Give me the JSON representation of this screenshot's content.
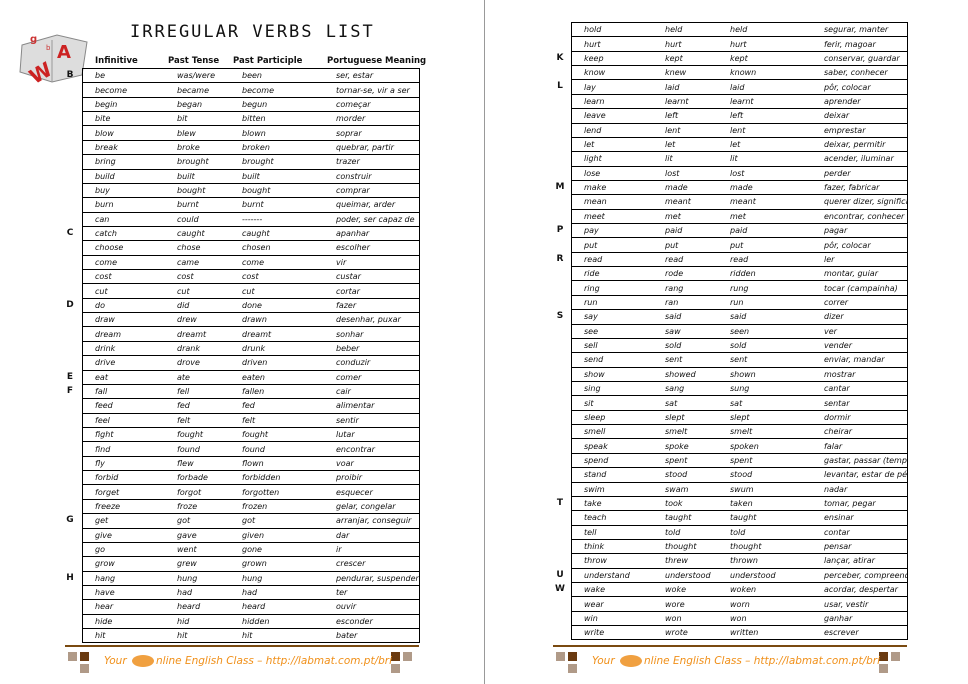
{
  "title": "Irregular Verbs List",
  "logo_letters": "g b A W",
  "headers": [
    "Infinitive",
    "Past Tense",
    "Past Participle",
    "Portuguese Meaning"
  ],
  "footer": {
    "text_before": "Your",
    "text_after": "nline English Class – http://labmat.com.pt/bri"
  },
  "colors": {
    "footer_text": "#f0901a",
    "footer_line": "#7a4a10"
  },
  "left_rows": [
    [
      "B",
      "be",
      "was/were",
      "been",
      "ser, estar"
    ],
    [
      "",
      "become",
      "became",
      "become",
      "tornar-se, vir a ser"
    ],
    [
      "",
      "begin",
      "began",
      "begun",
      "começar"
    ],
    [
      "",
      "bite",
      "bit",
      "bitten",
      "morder"
    ],
    [
      "",
      "blow",
      "blew",
      "blown",
      "soprar"
    ],
    [
      "",
      "break",
      "broke",
      "broken",
      "quebrar, partir"
    ],
    [
      "",
      "bring",
      "brought",
      "brought",
      "trazer"
    ],
    [
      "",
      "build",
      "built",
      "built",
      "construir"
    ],
    [
      "",
      "buy",
      "bought",
      "bought",
      "comprar"
    ],
    [
      "",
      "burn",
      "burnt",
      "burnt",
      "queimar, arder"
    ],
    [
      "",
      "can",
      "could",
      "-------",
      "poder, ser capaz de"
    ],
    [
      "C",
      "catch",
      "caught",
      "caught",
      "apanhar"
    ],
    [
      "",
      "choose",
      "chose",
      "chosen",
      "escolher"
    ],
    [
      "",
      "come",
      "came",
      "come",
      "vir"
    ],
    [
      "",
      "cost",
      "cost",
      "cost",
      "custar"
    ],
    [
      "",
      "cut",
      "cut",
      "cut",
      "cortar"
    ],
    [
      "D",
      "do",
      "did",
      "done",
      "fazer"
    ],
    [
      "",
      "draw",
      "drew",
      "drawn",
      "desenhar, puxar"
    ],
    [
      "",
      "dream",
      "dreamt",
      "dreamt",
      "sonhar"
    ],
    [
      "",
      "drink",
      "drank",
      "drunk",
      "beber"
    ],
    [
      "",
      "drive",
      "drove",
      "driven",
      "conduzir"
    ],
    [
      "E",
      "eat",
      "ate",
      "eaten",
      "comer"
    ],
    [
      "F",
      "fall",
      "fell",
      "fallen",
      "cair"
    ],
    [
      "",
      "feed",
      "fed",
      "fed",
      "alimentar"
    ],
    [
      "",
      "feel",
      "felt",
      "felt",
      "sentir"
    ],
    [
      "",
      "fight",
      "fought",
      "fought",
      "lutar"
    ],
    [
      "",
      "find",
      "found",
      "found",
      "encontrar"
    ],
    [
      "",
      "fly",
      "flew",
      "flown",
      "voar"
    ],
    [
      "",
      "forbid",
      "forbade",
      "forbidden",
      "proibir"
    ],
    [
      "",
      "forget",
      "forgot",
      "forgotten",
      "esquecer"
    ],
    [
      "",
      "freeze",
      "froze",
      "frozen",
      "gelar, congelar"
    ],
    [
      "G",
      "get",
      "got",
      "got",
      "arranjar, conseguir"
    ],
    [
      "",
      "give",
      "gave",
      "given",
      "dar"
    ],
    [
      "",
      "go",
      "went",
      "gone",
      "ir"
    ],
    [
      "",
      "grow",
      "grew",
      "grown",
      "crescer"
    ],
    [
      "H",
      "hang",
      "hung",
      "hung",
      "pendurar, suspender"
    ],
    [
      "",
      "have",
      "had",
      "had",
      "ter"
    ],
    [
      "",
      "hear",
      "heard",
      "heard",
      "ouvir"
    ],
    [
      "",
      "hide",
      "hid",
      "hidden",
      "esconder"
    ],
    [
      "",
      "hit",
      "hit",
      "hit",
      "bater"
    ]
  ],
  "right_rows": [
    [
      "",
      "hold",
      "held",
      "held",
      "segurar, manter"
    ],
    [
      "",
      "hurt",
      "hurt",
      "hurt",
      "ferir, magoar"
    ],
    [
      "K",
      "keep",
      "kept",
      "kept",
      "conservar, guardar"
    ],
    [
      "",
      "know",
      "knew",
      "known",
      "saber, conhecer"
    ],
    [
      "L",
      "lay",
      "laid",
      "laid",
      "pôr, colocar"
    ],
    [
      "",
      "learn",
      "learnt",
      "learnt",
      "aprender"
    ],
    [
      "",
      "leave",
      "left",
      "left",
      "deixar"
    ],
    [
      "",
      "lend",
      "lent",
      "lent",
      "emprestar"
    ],
    [
      "",
      "let",
      "let",
      "let",
      "deixar, permitir"
    ],
    [
      "",
      "light",
      "lit",
      "lit",
      "acender, iluminar"
    ],
    [
      "",
      "lose",
      "lost",
      "lost",
      "perder"
    ],
    [
      "M",
      "make",
      "made",
      "made",
      "fazer, fabricar"
    ],
    [
      "",
      "mean",
      "meant",
      "meant",
      "querer dizer, significar"
    ],
    [
      "",
      "meet",
      "met",
      "met",
      "encontrar, conhecer"
    ],
    [
      "P",
      "pay",
      "paid",
      "paid",
      "pagar"
    ],
    [
      "",
      "put",
      "put",
      "put",
      "pôr, colocar"
    ],
    [
      "R",
      "read",
      "read",
      "read",
      "ler"
    ],
    [
      "",
      "ride",
      "rode",
      "ridden",
      "montar, guiar"
    ],
    [
      "",
      "ring",
      "rang",
      "rung",
      "tocar (campainha)"
    ],
    [
      "",
      "run",
      "ran",
      "run",
      "correr"
    ],
    [
      "S",
      "say",
      "said",
      "said",
      "dizer"
    ],
    [
      "",
      "see",
      "saw",
      "seen",
      "ver"
    ],
    [
      "",
      "sell",
      "sold",
      "sold",
      "vender"
    ],
    [
      "",
      "send",
      "sent",
      "sent",
      "enviar, mandar"
    ],
    [
      "",
      "show",
      "showed",
      "shown",
      "mostrar"
    ],
    [
      "",
      "sing",
      "sang",
      "sung",
      "cantar"
    ],
    [
      "",
      "sit",
      "sat",
      "sat",
      "sentar"
    ],
    [
      "",
      "sleep",
      "slept",
      "slept",
      "dormir"
    ],
    [
      "",
      "smell",
      "smelt",
      "smelt",
      "cheirar"
    ],
    [
      "",
      "speak",
      "spoke",
      "spoken",
      "falar"
    ],
    [
      "",
      "spend",
      "spent",
      "spent",
      "gastar, passar (tempo)"
    ],
    [
      "",
      "stand",
      "stood",
      "stood",
      "levantar, estar de pé"
    ],
    [
      "",
      "swim",
      "swam",
      "swum",
      "nadar"
    ],
    [
      "T",
      "take",
      "took",
      "taken",
      "tomar, pegar"
    ],
    [
      "",
      "teach",
      "taught",
      "taught",
      "ensinar"
    ],
    [
      "",
      "tell",
      "told",
      "told",
      "contar"
    ],
    [
      "",
      "think",
      "thought",
      "thought",
      "pensar"
    ],
    [
      "",
      "throw",
      "threw",
      "thrown",
      "lançar, atirar"
    ],
    [
      "U",
      "understand",
      "understood",
      "understood",
      "perceber, compreender"
    ],
    [
      "W",
      "wake",
      "woke",
      "woken",
      "acordar, despertar"
    ],
    [
      "",
      "wear",
      "wore",
      "worn",
      "usar, vestir"
    ],
    [
      "",
      "win",
      "won",
      "won",
      "ganhar"
    ],
    [
      "",
      "write",
      "wrote",
      "written",
      "escrever"
    ]
  ]
}
